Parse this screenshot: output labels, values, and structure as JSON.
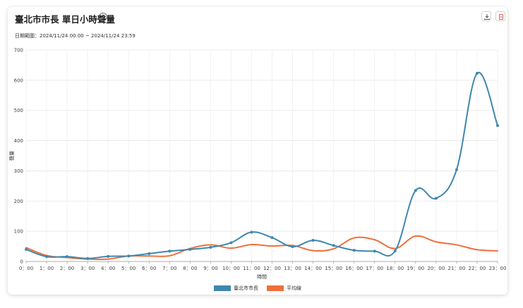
{
  "header": {
    "title": "臺北市市長 單日小時聲量",
    "date_range": "日期範圍：2024/11/24 00:00 ~ 2024/11/24 23:59"
  },
  "toolbar": {
    "download_icon": "download-icon",
    "export_icon": "export-icon"
  },
  "colors": {
    "series_main": "#3f87ad",
    "series_avg": "#ef6f3a"
  },
  "chart_data": {
    "type": "line",
    "xlabel": "時間",
    "ylabel": "聲量",
    "ylim": [
      0,
      700
    ],
    "yticks": [
      0,
      100,
      200,
      300,
      400,
      500,
      600,
      700
    ],
    "grid": true,
    "legend_position": "bottom",
    "categories": [
      "0：00",
      "1：00",
      "2：00",
      "3：00",
      "4：00",
      "5：00",
      "6：00",
      "7：00",
      "8：00",
      "9：00",
      "10：00",
      "11：00",
      "12：00",
      "13：00",
      "14：00",
      "15：00",
      "16：00",
      "17：00",
      "18：00",
      "19：00",
      "20：00",
      "21：00",
      "22：00",
      "23：00"
    ],
    "series": [
      {
        "name": "臺北市市長",
        "color": "#3f87ad",
        "markers": true,
        "values": [
          40,
          16,
          16,
          10,
          17,
          18,
          26,
          34,
          40,
          47,
          62,
          97,
          79,
          49,
          70,
          53,
          37,
          34,
          35,
          235,
          209,
          304,
          623,
          450
        ]
      },
      {
        "name": "平均線",
        "color": "#ef6f3a",
        "markers": false,
        "values": [
          46,
          20,
          13,
          8,
          8,
          18,
          18,
          19,
          43,
          55,
          44,
          56,
          51,
          53,
          36,
          42,
          78,
          72,
          43,
          84,
          65,
          55,
          39,
          35
        ]
      }
    ]
  }
}
